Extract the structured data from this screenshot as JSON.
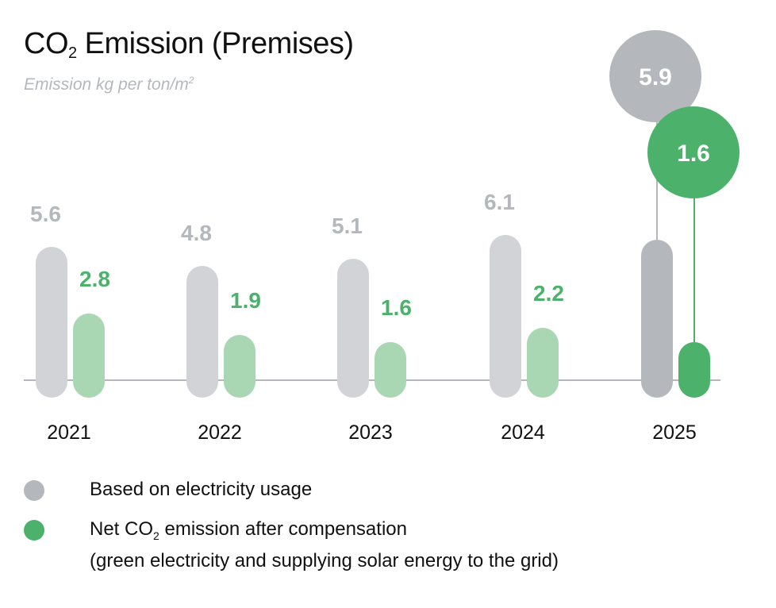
{
  "title_prefix": "CO",
  "title_sub": "2",
  "title_rest": " Emission (Premises)",
  "subtitle_text": "Emission kg per ton/m",
  "subtitle_sup": "2",
  "colors": {
    "gross_past": "#d1d3d6",
    "gross_current": "#b4b8bc",
    "net_past": "#a9d6b3",
    "net_current": "#4cb26b",
    "gross_label": "#b4b8bc",
    "net_label": "#4cb26b",
    "baseline": "#b4b8bc"
  },
  "chart_data": {
    "type": "bar",
    "title": "CO2 Emission (Premises)",
    "ylabel": "Emission kg per ton/m2",
    "categories": [
      "2021",
      "2022",
      "2023",
      "2024",
      "2025"
    ],
    "series": [
      {
        "name": "Based on electricity usage",
        "values": [
          5.6,
          4.8,
          5.1,
          6.1,
          5.9
        ]
      },
      {
        "name": "Net CO2 emission after compensation (green electricity and supplying solar energy to the grid)",
        "values": [
          2.8,
          1.9,
          1.6,
          2.2,
          1.6
        ]
      }
    ],
    "highlight_category": "2025",
    "labels": [
      [
        "5.6",
        "4.8",
        "5.1",
        "6.1",
        "5.9"
      ],
      [
        "2.8",
        "1.9",
        "1.6",
        "2.2",
        "1.6"
      ]
    ],
    "grid": false,
    "legend": "bottom"
  },
  "legend": {
    "item1": "Based on electricity usage",
    "item2_prefix": "Net CO",
    "item2_sub": "2",
    "item2_rest": " emission after compensation",
    "item2_line2": "(green electricity and supplying solar energy to the grid)"
  }
}
